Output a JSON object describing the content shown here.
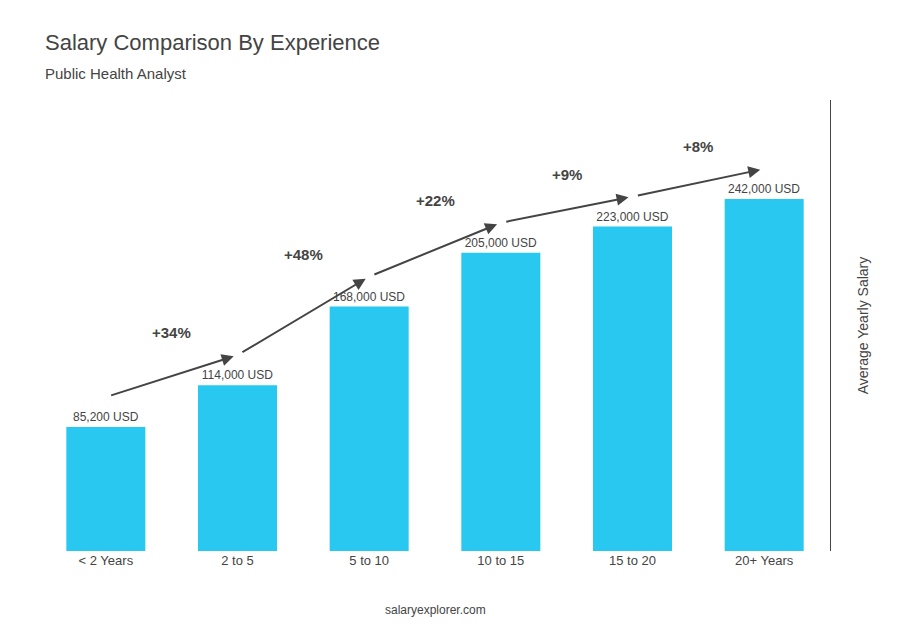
{
  "chart_data": {
    "type": "bar",
    "title": "Salary Comparison By Experience",
    "subtitle": "Public Health Analyst",
    "categories": [
      "< 2 Years",
      "2 to 5",
      "5 to 10",
      "10 to 15",
      "15 to 20",
      "20+ Years"
    ],
    "values": [
      85200,
      114000,
      168000,
      205000,
      223000,
      242000
    ],
    "value_labels": [
      "85,200 USD",
      "114,000 USD",
      "168,000 USD",
      "205,000 USD",
      "223,000 USD",
      "242,000 USD"
    ],
    "data_labels": true,
    "color": "#29c8f0",
    "ylabel": "Average Yearly Salary",
    "ylim": [
      0,
      310000
    ],
    "tick_labels": "x",
    "grid": false,
    "annotations": [
      "+34%",
      "+48%",
      "+22%",
      "+9%",
      "+8%"
    ],
    "footer": "salaryexplorer.com"
  }
}
